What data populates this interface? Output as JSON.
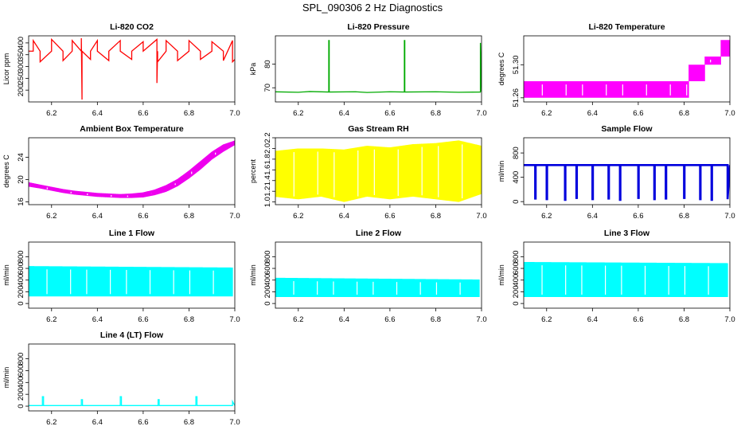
{
  "figure": {
    "title": "SPL_090306  2 Hz Diagnostics"
  },
  "chart_data": [
    {
      "type": "line",
      "title": "Li-820 CO2",
      "ylabel": "Licor ppm",
      "color": "#ff0000",
      "xlim": [
        6.1,
        7.0
      ],
      "ylim": [
        150,
        430
      ],
      "xticks": [
        6.2,
        6.4,
        6.6,
        6.8,
        7.0
      ],
      "xticklabels": [
        "6.2",
        "6.4",
        "6.6",
        "6.8",
        "7.0"
      ],
      "yticks": [
        200,
        250,
        300,
        350,
        400
      ],
      "yticklabels": [
        "200",
        "250",
        "300",
        "350",
        "400"
      ],
      "series": [
        {
          "x": [
            6.09,
            6.12,
            6.12,
            6.15,
            6.15,
            6.2,
            6.2,
            6.25,
            6.25,
            6.29,
            6.29,
            6.33,
            6.33,
            6.333,
            6.333,
            6.37,
            6.37,
            6.4,
            6.4,
            6.45,
            6.45,
            6.5,
            6.5,
            6.55,
            6.55,
            6.6,
            6.6,
            6.66,
            6.66,
            6.663,
            6.663,
            6.7,
            6.7,
            6.75,
            6.75,
            6.8,
            6.8,
            6.85,
            6.85,
            6.9,
            6.9,
            6.95,
            6.95,
            6.99,
            6.99,
            7.0
          ],
          "y": [
            365,
            365,
            410,
            365,
            320,
            365,
            415,
            365,
            325,
            365,
            410,
            365,
            420,
            160,
            365,
            330,
            365,
            410,
            365,
            325,
            365,
            410,
            365,
            330,
            365,
            405,
            365,
            415,
            230,
            365,
            320,
            365,
            410,
            365,
            325,
            365,
            410,
            365,
            330,
            365,
            405,
            365,
            325,
            410,
            320,
            330
          ]
        }
      ]
    },
    {
      "type": "line",
      "title": "Li-820 Pressure",
      "ylabel": "kPa",
      "color": "#00aa00",
      "xlim": [
        6.1,
        7.0
      ],
      "ylim": [
        64,
        92
      ],
      "xticks": [
        6.2,
        6.4,
        6.6,
        6.8,
        7.0
      ],
      "xticklabels": [
        "6.2",
        "6.4",
        "6.6",
        "6.8",
        "7.0"
      ],
      "yticks": [
        70,
        80
      ],
      "yticklabels": [
        "70",
        "80"
      ],
      "series": [
        {
          "x": [
            6.09,
            6.2,
            6.25,
            6.333,
            6.333,
            6.335,
            6.335,
            6.45,
            6.5,
            6.6,
            6.663,
            6.663,
            6.665,
            6.665,
            6.8,
            6.9,
            6.995,
            6.995,
            7.0
          ],
          "y": [
            68.3,
            68.1,
            68.4,
            68.2,
            90,
            90,
            68.2,
            68.3,
            68.0,
            68.3,
            68.2,
            90,
            90,
            68.2,
            68.3,
            68.1,
            68.2,
            89,
            68.4
          ]
        }
      ]
    },
    {
      "type": "area",
      "title": "Li-820 Temperature",
      "ylabel": "degrees C",
      "color": "#ff00ff",
      "xlim": [
        6.1,
        7.0
      ],
      "ylim": [
        51.255,
        51.335
      ],
      "xticks": [
        6.2,
        6.4,
        6.6,
        6.8,
        7.0
      ],
      "xticklabels": [
        "6.2",
        "6.4",
        "6.6",
        "6.8",
        "7.0"
      ],
      "yticks": [
        51.26,
        51.3
      ],
      "yticklabels": [
        "51.26",
        "51.30"
      ],
      "series": [
        {
          "x": [
            6.09,
            6.82,
            6.82,
            6.89,
            6.89,
            6.96,
            6.96,
            7.0
          ],
          "y_low": [
            51.26,
            51.26,
            51.28,
            51.28,
            51.3,
            51.3,
            51.31,
            51.31
          ],
          "y_high": [
            51.28,
            51.28,
            51.3,
            51.3,
            51.31,
            51.31,
            51.33,
            51.33
          ]
        }
      ]
    },
    {
      "type": "area",
      "title": "Ambient Box Temperature",
      "ylabel": "degrees C",
      "color": "#ee00ee",
      "xlim": [
        6.1,
        7.0
      ],
      "ylim": [
        15.5,
        27.5
      ],
      "xticks": [
        6.2,
        6.4,
        6.6,
        6.8,
        7.0
      ],
      "xticklabels": [
        "6.2",
        "6.4",
        "6.6",
        "6.8",
        "7.0"
      ],
      "yticks": [
        16,
        20,
        24
      ],
      "yticklabels": [
        "16",
        "20",
        "24"
      ],
      "series": [
        {
          "x": [
            6.09,
            6.15,
            6.2,
            6.25,
            6.3,
            6.35,
            6.4,
            6.45,
            6.5,
            6.55,
            6.6,
            6.65,
            6.7,
            6.75,
            6.8,
            6.85,
            6.9,
            6.95,
            7.0
          ],
          "y_low": [
            18.8,
            18.4,
            18.0,
            17.6,
            17.3,
            17.1,
            16.9,
            16.8,
            16.7,
            16.7,
            16.8,
            17.2,
            17.8,
            18.8,
            20.2,
            21.8,
            23.6,
            25.0,
            26.2
          ],
          "y_high": [
            19.6,
            19.1,
            18.7,
            18.3,
            18.0,
            17.8,
            17.6,
            17.5,
            17.4,
            17.5,
            17.7,
            18.2,
            19.0,
            20.1,
            21.6,
            23.3,
            25.0,
            26.3,
            27.0
          ]
        }
      ]
    },
    {
      "type": "area",
      "title": "Gas Stream RH",
      "ylabel": "percent",
      "color": "#ffff00",
      "xlim": [
        6.1,
        7.0
      ],
      "ylim": [
        0.95,
        2.2
      ],
      "xticks": [
        6.2,
        6.4,
        6.6,
        6.8,
        7.0
      ],
      "xticklabels": [
        "6.2",
        "6.4",
        "6.6",
        "6.8",
        "7.0"
      ],
      "yticks": [
        1.0,
        1.2,
        1.4,
        1.6,
        1.8,
        2.0,
        2.2
      ],
      "yticklabels": [
        "1.0",
        "1.2",
        "1.4",
        "1.6",
        "1.8",
        "2.0",
        "2.2"
      ],
      "series": [
        {
          "x": [
            6.09,
            6.2,
            6.3,
            6.4,
            6.5,
            6.6,
            6.7,
            6.8,
            6.9,
            7.0
          ],
          "y_low": [
            1.1,
            1.05,
            1.1,
            1.0,
            1.1,
            1.05,
            1.1,
            1.05,
            1.0,
            1.15
          ],
          "y_high": [
            1.95,
            2.0,
            2.0,
            1.98,
            2.05,
            2.02,
            2.08,
            2.1,
            2.15,
            2.05
          ]
        }
      ]
    },
    {
      "type": "line",
      "title": "Sample Flow",
      "ylabel": "ml/min",
      "color": "#0000dd",
      "xlim": [
        6.1,
        7.0
      ],
      "ylim": [
        -50,
        1050
      ],
      "xticks": [
        6.2,
        6.4,
        6.6,
        6.8,
        7.0
      ],
      "xticklabels": [
        "6.2",
        "6.4",
        "6.6",
        "6.8",
        "7.0"
      ],
      "yticks": [
        0,
        400,
        800
      ],
      "yticklabels": [
        "0",
        "400",
        "800"
      ],
      "series": [
        {
          "x": [
            6.09,
            6.15,
            6.15,
            6.152,
            6.152,
            6.2,
            6.2,
            6.202,
            6.202,
            6.28,
            6.28,
            6.282,
            6.282,
            6.33,
            6.33,
            6.332,
            6.332,
            6.4,
            6.4,
            6.402,
            6.402,
            6.47,
            6.47,
            6.472,
            6.472,
            6.52,
            6.52,
            6.522,
            6.522,
            6.6,
            6.6,
            6.602,
            6.602,
            6.67,
            6.67,
            6.672,
            6.672,
            6.72,
            6.72,
            6.722,
            6.722,
            6.8,
            6.8,
            6.802,
            6.802,
            6.87,
            6.87,
            6.872,
            6.872,
            6.92,
            6.92,
            6.922,
            6.922,
            6.99,
            6.99,
            7.0
          ],
          "y": [
            600,
            600,
            50,
            50,
            600,
            600,
            40,
            40,
            600,
            600,
            30,
            30,
            600,
            600,
            60,
            60,
            600,
            600,
            40,
            40,
            600,
            600,
            50,
            50,
            600,
            600,
            30,
            30,
            600,
            600,
            60,
            60,
            600,
            600,
            40,
            40,
            600,
            600,
            50,
            50,
            600,
            600,
            60,
            60,
            600,
            600,
            40,
            40,
            600,
            600,
            30,
            30,
            600,
            600,
            40,
            600
          ]
        }
      ]
    },
    {
      "type": "area",
      "title": "Line 1 Flow",
      "ylabel": "ml/min",
      "color": "#00ffff",
      "xlim": [
        6.1,
        7.0
      ],
      "ylim": [
        -80,
        1050
      ],
      "xticks": [
        6.2,
        6.4,
        6.6,
        6.8,
        7.0
      ],
      "xticklabels": [
        "6.2",
        "6.4",
        "6.6",
        "6.8",
        "7.0"
      ],
      "yticks": [
        0,
        200,
        400,
        600,
        800
      ],
      "yticklabels": [
        "0",
        "200",
        "400",
        "600",
        "800"
      ],
      "series": [
        {
          "x": [
            6.09,
            6.99
          ],
          "y_low": [
            120,
            120
          ],
          "y_high": [
            640,
            615
          ]
        }
      ]
    },
    {
      "type": "area",
      "title": "Line 2 Flow",
      "ylabel": "ml/min",
      "color": "#00ffff",
      "xlim": [
        6.1,
        7.0
      ],
      "ylim": [
        -80,
        1050
      ],
      "xticks": [
        6.2,
        6.4,
        6.6,
        6.8,
        7.0
      ],
      "xticklabels": [
        "6.2",
        "6.4",
        "6.6",
        "6.8",
        "7.0"
      ],
      "yticks": [
        0,
        200,
        400,
        600,
        800
      ],
      "yticklabels": [
        "0",
        "200",
        "400",
        "600",
        "800"
      ],
      "series": [
        {
          "x": [
            6.09,
            6.99
          ],
          "y_low": [
            110,
            110
          ],
          "y_high": [
            440,
            410
          ]
        }
      ]
    },
    {
      "type": "area",
      "title": "Line 3 Flow",
      "ylabel": "ml/min",
      "color": "#00ffff",
      "xlim": [
        6.1,
        7.0
      ],
      "ylim": [
        -80,
        1050
      ],
      "xticks": [
        6.2,
        6.4,
        6.6,
        6.8,
        7.0
      ],
      "xticklabels": [
        "6.2",
        "6.4",
        "6.6",
        "6.8",
        "7.0"
      ],
      "yticks": [
        0,
        200,
        400,
        600,
        800
      ],
      "yticklabels": [
        "0",
        "200",
        "400",
        "600",
        "800"
      ],
      "series": [
        {
          "x": [
            6.09,
            6.99
          ],
          "y_low": [
            110,
            110
          ],
          "y_high": [
            710,
            690
          ]
        }
      ]
    },
    {
      "type": "line",
      "title": "Line 4 (LT) Flow",
      "ylabel": "ml/min",
      "color": "#00ffff",
      "xlim": [
        6.1,
        7.0
      ],
      "ylim": [
        -80,
        1050
      ],
      "xticks": [
        6.2,
        6.4,
        6.6,
        6.8,
        7.0
      ],
      "xticklabels": [
        "6.2",
        "6.4",
        "6.6",
        "6.8",
        "7.0"
      ],
      "yticks": [
        0,
        200,
        400,
        600,
        800
      ],
      "yticklabels": [
        "0",
        "200",
        "400",
        "600",
        "800"
      ],
      "series": [
        {
          "x": [
            6.09,
            6.16,
            6.16,
            6.165,
            6.165,
            6.33,
            6.33,
            6.335,
            6.335,
            6.5,
            6.5,
            6.505,
            6.505,
            6.665,
            6.665,
            6.67,
            6.67,
            6.83,
            6.83,
            6.835,
            6.835,
            6.99,
            6.99,
            7.0
          ],
          "y": [
            10,
            10,
            160,
            160,
            10,
            10,
            110,
            110,
            10,
            10,
            160,
            160,
            10,
            10,
            110,
            110,
            10,
            10,
            160,
            160,
            10,
            10,
            80,
            10
          ]
        }
      ]
    }
  ]
}
